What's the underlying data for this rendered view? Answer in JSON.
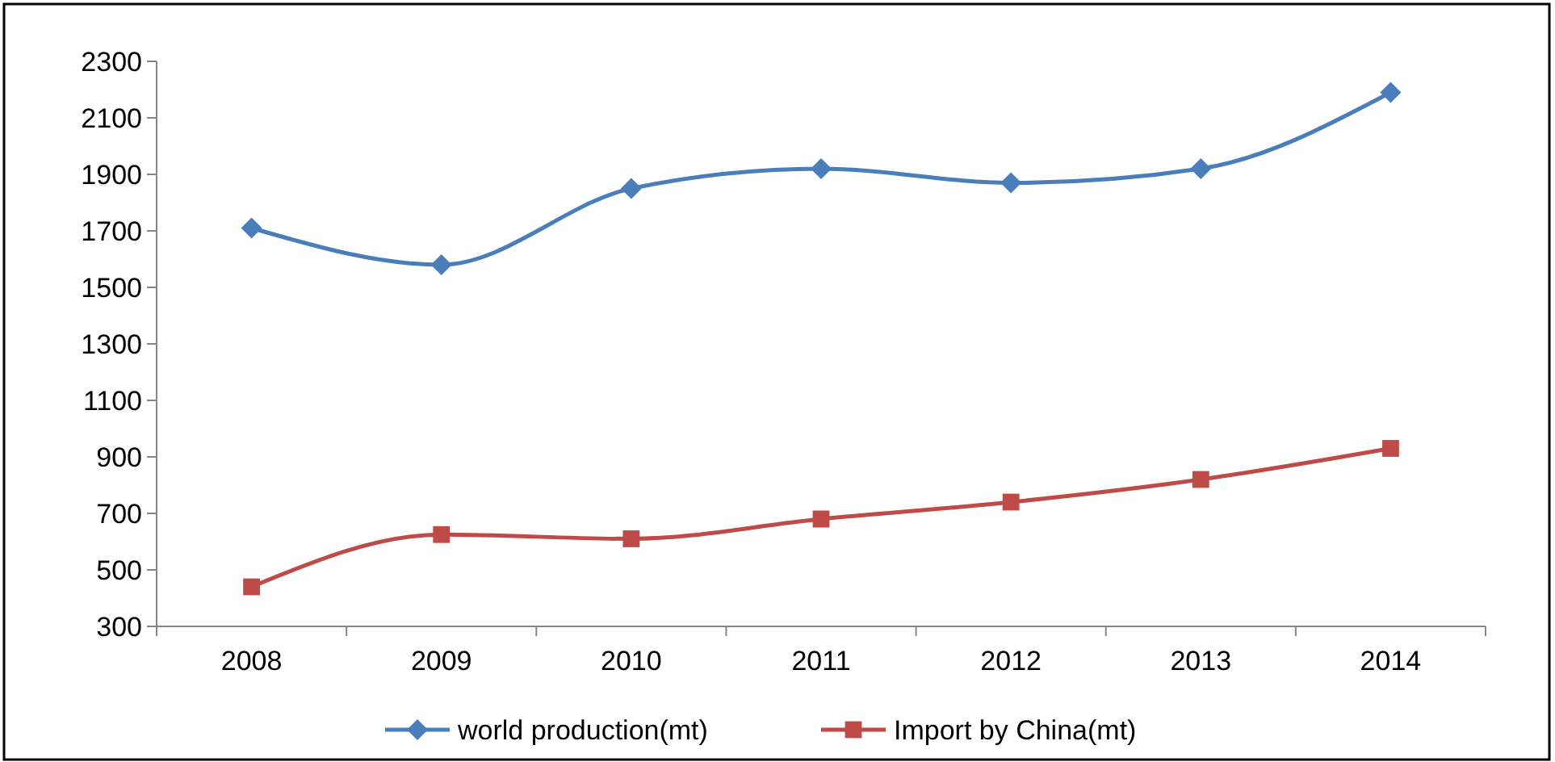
{
  "chart_data": {
    "type": "line",
    "categories": [
      "2008",
      "2009",
      "2010",
      "2011",
      "2012",
      "2013",
      "2014"
    ],
    "series": [
      {
        "name": "world production(mt)",
        "color": "#4a7ebb",
        "marker": "diamond",
        "values": [
          1710,
          1580,
          1850,
          1920,
          1870,
          1920,
          2190
        ]
      },
      {
        "name": "Import by China(mt)",
        "color": "#be4b48",
        "marker": "square",
        "values": [
          440,
          625,
          610,
          680,
          740,
          820,
          930
        ]
      }
    ],
    "ylim": [
      300,
      2300
    ],
    "yticks": [
      300,
      500,
      700,
      900,
      1100,
      1300,
      1500,
      1700,
      1900,
      2100,
      2300
    ],
    "grid": false,
    "legend": "bottom",
    "line_style": "solid"
  }
}
